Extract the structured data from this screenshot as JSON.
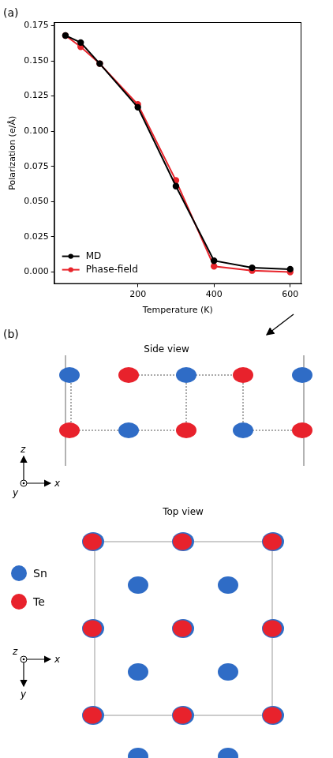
{
  "chart_data": {
    "type": "line",
    "label": "(a)",
    "x_label": "Temperature (K)",
    "y_label": "Polarization (e/Å)",
    "x": [
      10,
      50,
      100,
      200,
      300,
      400,
      500,
      600
    ],
    "series": [
      {
        "name": "MD",
        "color": "#000000",
        "marker": "circle",
        "line_style": "solid",
        "values": [
          0.168,
          0.163,
          0.148,
          0.117,
          0.061,
          0.008,
          0.003,
          0.002
        ]
      },
      {
        "name": "Phase-field",
        "color": "#e8242b",
        "marker": "circle",
        "line_style": "solid",
        "values": [
          0.168,
          0.16,
          0.148,
          0.119,
          0.065,
          0.004,
          0.001,
          0.0
        ]
      }
    ],
    "xlim": [
      -19.5,
      629.5
    ],
    "xticks": [
      200,
      400,
      600
    ],
    "ylim": [
      -0.0085,
      0.1775
    ],
    "yticks": [
      {
        "value": 0,
        "label": "0.000"
      },
      {
        "value": 0.025,
        "label": "0.025"
      },
      {
        "value": 0.05,
        "label": "0.050"
      },
      {
        "value": 0.075,
        "label": "0.075"
      },
      {
        "value": 0.1,
        "label": "0.100"
      },
      {
        "value": 0.125,
        "label": "0.125"
      },
      {
        "value": 0.15,
        "label": "0.150"
      },
      {
        "value": 0.175,
        "label": "0.175"
      }
    ],
    "grid": false,
    "legend": "lower left"
  },
  "diagram": {
    "label": "(b)",
    "side_view": {
      "title": "Side view",
      "axes": {
        "vertical": "z",
        "horizontal": "x",
        "out_of_page": "y"
      }
    },
    "top_view": {
      "title": "Top view",
      "axes": {
        "vertical": "y",
        "horizontal": "x",
        "out_of_page": "z"
      }
    },
    "legend": [
      {
        "name": "Sn",
        "color": "#2f6cc6"
      },
      {
        "name": "Te",
        "color": "#e8222c"
      }
    ]
  }
}
